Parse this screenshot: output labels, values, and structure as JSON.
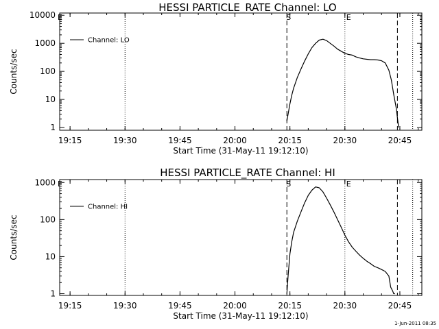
{
  "footer": "1-Jun-2011 08:35",
  "chart_data": [
    {
      "type": "line",
      "title": "HESSI PARTICLE_RATE Channel: LO",
      "xlabel": "Start Time (31-May-11 19:12:10)",
      "ylabel": "Counts/sec",
      "yscale": "log",
      "ylim": [
        0.8,
        12000
      ],
      "xlim": [
        "19:12:10",
        "20:51:00"
      ],
      "x_ticks": [
        "19:15",
        "19:30",
        "19:45",
        "20:00",
        "20:15",
        "20:30",
        "20:45"
      ],
      "y_ticks": [
        "1",
        "10",
        "100",
        "1000",
        "10000"
      ],
      "legend": {
        "position": "top-left",
        "entries": [
          "Channel: LO"
        ]
      },
      "markers": {
        "corner_label": "E",
        "start": {
          "label": "S",
          "time": "20:14:10",
          "style": "dashed"
        },
        "end": {
          "label": "E",
          "time": "20:30:00",
          "style": "dotted"
        },
        "dotted_lines": [
          "19:30:00",
          "20:48:30"
        ],
        "dashed_lines": [
          "20:44:20"
        ]
      },
      "series": [
        {
          "name": "Channel: LO",
          "x": [
            "20:14:10",
            "20:14:30",
            "20:15:00",
            "20:15:30",
            "20:16:00",
            "20:17:00",
            "20:18:00",
            "20:19:00",
            "20:20:00",
            "20:21:00",
            "20:22:00",
            "20:23:00",
            "20:24:00",
            "20:25:00",
            "20:26:00",
            "20:27:00",
            "20:28:00",
            "20:29:00",
            "20:30:00",
            "20:31:00",
            "20:32:00",
            "20:33:00",
            "20:34:00",
            "20:35:00",
            "20:36:00",
            "20:37:00",
            "20:38:00",
            "20:39:00",
            "20:40:00",
            "20:41:00",
            "20:42:00",
            "20:42:40",
            "20:43:20",
            "20:44:00",
            "20:44:20",
            "20:44:40"
          ],
          "y": [
            1.7,
            3,
            7,
            14,
            25,
            60,
            120,
            230,
            420,
            700,
            1000,
            1300,
            1400,
            1250,
            1000,
            800,
            620,
            520,
            440,
            400,
            380,
            330,
            300,
            280,
            270,
            260,
            260,
            255,
            240,
            200,
            110,
            50,
            15,
            5,
            2.2,
            1
          ]
        }
      ]
    },
    {
      "type": "line",
      "title": "HESSI PARTICLE_RATE Channel: HI",
      "xlabel": "Start Time (31-May-11 19:12:10)",
      "ylabel": "Counts/sec",
      "yscale": "log",
      "ylim": [
        0.9,
        1200
      ],
      "xlim": [
        "19:12:10",
        "20:51:00"
      ],
      "x_ticks": [
        "19:15",
        "19:30",
        "19:45",
        "20:00",
        "20:15",
        "20:30",
        "20:45"
      ],
      "y_ticks": [
        "1",
        "10",
        "100",
        "1000"
      ],
      "legend": {
        "position": "top-left",
        "entries": [
          "Channel: HI"
        ]
      },
      "markers": {
        "corner_label": "E",
        "start": {
          "label": "S",
          "time": "20:14:10",
          "style": "dashed"
        },
        "end": {
          "label": "E",
          "time": "20:30:00",
          "style": "dotted"
        },
        "dotted_lines": [
          "19:30:00",
          "20:48:30"
        ],
        "dashed_lines": [
          "20:44:20"
        ]
      },
      "series": [
        {
          "name": "Channel: HI",
          "x": [
            "20:14:10",
            "20:14:30",
            "20:15:00",
            "20:15:30",
            "20:16:00",
            "20:17:00",
            "20:18:00",
            "20:19:00",
            "20:20:00",
            "20:21:00",
            "20:22:00",
            "20:23:00",
            "20:24:00",
            "20:25:00",
            "20:26:00",
            "20:27:00",
            "20:28:00",
            "20:29:00",
            "20:30:00",
            "20:31:00",
            "20:32:00",
            "20:33:00",
            "20:34:00",
            "20:35:00",
            "20:36:00",
            "20:37:00",
            "20:38:00",
            "20:39:00",
            "20:40:00",
            "20:41:00",
            "20:42:00",
            "20:42:30",
            "20:43:00",
            "20:43:20",
            "20:43:40"
          ],
          "y": [
            1,
            3,
            12,
            25,
            45,
            90,
            160,
            280,
            450,
            620,
            760,
            720,
            560,
            380,
            250,
            160,
            100,
            62,
            38,
            25,
            18,
            14,
            11,
            9,
            7.5,
            6.5,
            5.5,
            5,
            4.5,
            4,
            3,
            1.5,
            1.2,
            1,
            1
          ]
        }
      ]
    }
  ]
}
